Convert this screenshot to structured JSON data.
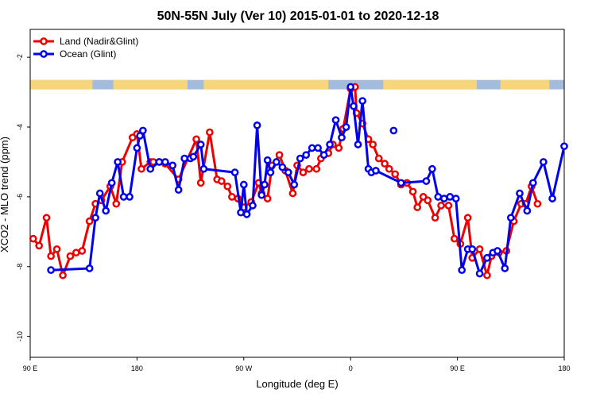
{
  "chart_data": {
    "type": "line",
    "title": "50N-55N July (Ver 10)   2015-01-01 to 2020-12-18",
    "xlabel": "Longitude (deg E)",
    "ylabel": "XCO2 - MLO trend (ppm)",
    "xlim": [
      90,
      450
    ],
    "ylim": [
      -10.6,
      -1.2
    ],
    "x_ticks": [
      {
        "value": 90,
        "label": "90 E"
      },
      {
        "value": 162,
        "label": "180"
      },
      {
        "value": 234,
        "label": "90 W"
      },
      {
        "value": 306,
        "label": "0"
      },
      {
        "value": 378,
        "label": "90 E"
      },
      {
        "value": 450,
        "label": "180"
      }
    ],
    "y_ticks": [
      -2,
      -4,
      -6,
      -8,
      -10
    ],
    "legend": {
      "position": "top-left"
    },
    "land_mask_band": {
      "y_top": -2.65,
      "y_bottom": -2.92,
      "land_color": "#F7D57A",
      "ocean_color": "#A4BCDC"
    },
    "series": [
      {
        "name": "Land (Nadir&Glint)",
        "color": "#EE0000",
        "x": [
          92,
          96,
          101,
          104,
          108,
          112,
          117,
          121,
          125,
          130,
          134,
          138,
          144,
          148,
          152,
          159,
          162,
          165,
          171,
          173,
          177,
          181,
          190,
          202,
          205,
          211,
          216,
          219,
          223,
          226,
          230,
          234,
          239,
          244,
          246,
          250,
          253,
          258,
          262,
          267,
          270,
          274,
          278,
          283,
          286,
          291,
          294,
          298,
          301,
          306,
          309,
          310,
          314,
          318,
          321,
          325,
          329,
          332,
          336,
          340,
          344,
          348,
          351,
          355,
          358,
          363,
          367,
          372,
          376,
          380,
          385,
          388,
          393,
          398,
          401,
          406,
          411,
          416,
          421,
          424,
          428,
          432
        ],
        "values": [
          -7.2,
          -7.4,
          -6.6,
          -7.7,
          -7.5,
          -8.25,
          -7.7,
          -7.6,
          -7.55,
          -6.7,
          -6.2,
          -6.1,
          -5.7,
          -6.2,
          -5.0,
          -4.3,
          -4.2,
          -5.2,
          -5.0,
          -5.0,
          -5.0,
          -5.05,
          -5.5,
          -4.35,
          -5.6,
          -4.15,
          -5.5,
          -5.55,
          -5.7,
          -6.0,
          -6.05,
          -6.3,
          -6.15,
          -5.6,
          -5.9,
          -6.05,
          -5.1,
          -4.8,
          -5.25,
          -5.9,
          -5.1,
          -5.3,
          -5.2,
          -5.2,
          -4.9,
          -4.75,
          -4.5,
          -4.6,
          -4.05,
          -2.9,
          -2.85,
          -3.6,
          -3.9,
          -4.35,
          -4.5,
          -4.9,
          -5.05,
          -5.2,
          -5.35,
          -5.65,
          -5.6,
          -5.85,
          -6.3,
          -6.0,
          -6.1,
          -6.6,
          -6.25,
          -6.25,
          -7.2,
          -7.35,
          -6.6,
          -7.75,
          -7.5,
          -8.25,
          -7.7,
          -7.6,
          -7.55,
          -6.7,
          -6.2,
          -6.2,
          -5.7,
          -6.2
        ]
      },
      {
        "name": "Ocean (Glint)",
        "color": "#0000EE",
        "x": [
          104,
          130,
          134,
          137,
          141,
          145,
          149,
          153,
          157,
          162,
          164,
          166,
          171,
          177,
          181,
          186,
          190,
          194,
          198,
          200,
          205,
          207,
          228,
          232,
          234,
          236,
          240,
          243,
          246,
          248,
          250,
          252,
          256,
          260,
          264,
          268,
          272,
          276,
          280,
          284,
          288,
          292,
          296,
          300,
          303,
          306,
          308,
          311,
          314,
          318,
          320,
          323,
          340,
          357,
          361,
          365,
          369,
          373,
          377,
          381,
          385,
          388,
          393,
          398,
          402,
          405,
          410,
          414,
          420,
          425,
          429,
          436,
          442,
          450
        ],
        "values": [
          -8.1,
          -8.05,
          -6.6,
          -5.9,
          -6.4,
          -5.6,
          -5.0,
          -6.0,
          -6.0,
          -4.6,
          -4.25,
          -4.1,
          -5.2,
          -5.0,
          -5.0,
          -5.1,
          -5.8,
          -4.9,
          -4.9,
          -4.85,
          -4.5,
          -5.2,
          -5.3,
          -6.45,
          -5.65,
          -6.5,
          -6.25,
          -3.95,
          -5.95,
          -5.65,
          -4.95,
          -5.3,
          -5.0,
          -5.15,
          -5.3,
          -5.65,
          -4.9,
          -4.8,
          -4.6,
          -4.6,
          -4.8,
          -4.5,
          -3.8,
          -4.3,
          -4.0,
          -2.85,
          -3.4,
          -4.5,
          -3.25,
          -5.2,
          -5.3,
          -5.25,
          -5.6,
          -5.55,
          -5.2,
          -6.0,
          -6.05,
          -6.0,
          -6.05,
          -8.1,
          -7.5,
          -7.5,
          -8.2,
          -7.75,
          -7.6,
          -7.55,
          -8.05,
          -6.6,
          -5.9,
          -6.4,
          -5.6,
          -5.0,
          -6.05,
          -4.55
        ]
      }
    ]
  }
}
